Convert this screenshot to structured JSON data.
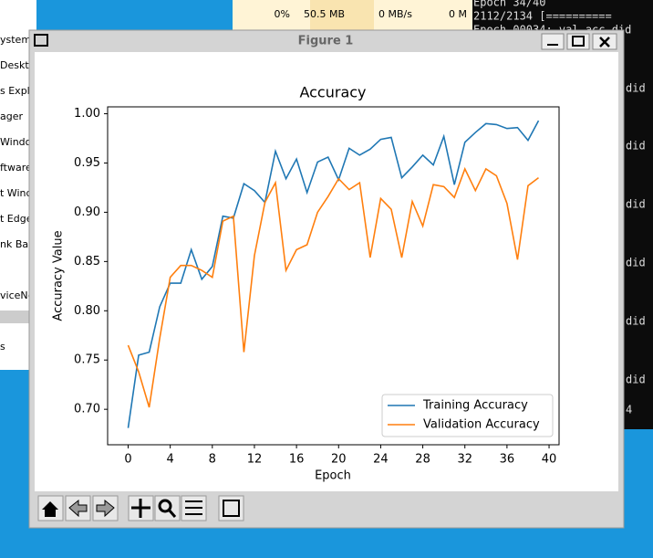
{
  "window": {
    "title": "Figure 1"
  },
  "background": {
    "task_manager": [
      "0%",
      "50.5 MB",
      "0 MB/s",
      "0 M"
    ],
    "sidebar": [
      "ystem",
      "Deskto",
      "s Explo",
      "ager",
      "Windo",
      "ftware:",
      "t Wind",
      "t Edge",
      "nk Bac",
      "viceNo",
      "s"
    ],
    "terminal": [
      "Epoch 34/40",
      "2112/2134 [==========",
      "Epoch 00034: val_acc did"
    ],
    "terminal_fragments": [
      "did",
      "did",
      "did",
      "did",
      "did",
      "did",
      "4"
    ]
  },
  "chart_data": {
    "type": "line",
    "title": "Accuracy",
    "x_label": "Epoch",
    "y_label": "Accuracy Value",
    "x": [
      0,
      1,
      2,
      3,
      4,
      5,
      6,
      7,
      8,
      9,
      10,
      11,
      12,
      13,
      14,
      15,
      16,
      17,
      18,
      19,
      20,
      21,
      22,
      23,
      24,
      25,
      26,
      27,
      28,
      29,
      30,
      31,
      32,
      33,
      34,
      35,
      36,
      37,
      38,
      39
    ],
    "series": [
      {
        "name": "Training Accuracy",
        "color": "#1f77b4",
        "values": [
          0.681,
          0.755,
          0.758,
          0.804,
          0.828,
          0.828,
          0.862,
          0.832,
          0.845,
          0.896,
          0.894,
          0.929,
          0.922,
          0.91,
          0.962,
          0.934,
          0.954,
          0.92,
          0.951,
          0.956,
          0.933,
          0.965,
          0.958,
          0.964,
          0.974,
          0.976,
          0.935,
          0.946,
          0.958,
          0.948,
          0.977,
          0.928,
          0.971,
          0.981,
          0.99,
          0.989,
          0.985,
          0.986,
          0.973,
          0.993
        ]
      },
      {
        "name": "Validation Accuracy",
        "color": "#ff7f0e",
        "values": [
          0.765,
          0.738,
          0.702,
          0.772,
          0.834,
          0.846,
          0.846,
          0.841,
          0.834,
          0.891,
          0.896,
          0.758,
          0.856,
          0.91,
          0.93,
          0.841,
          0.862,
          0.867,
          0.9,
          0.916,
          0.934,
          0.923,
          0.93,
          0.854,
          0.914,
          0.903,
          0.854,
          0.911,
          0.886,
          0.928,
          0.926,
          0.915,
          0.944,
          0.922,
          0.944,
          0.937,
          0.909,
          0.852,
          0.927,
          0.935
        ]
      }
    ],
    "xlim": [
      -1.95,
      40.95
    ],
    "xticks": [
      0,
      4,
      8,
      12,
      16,
      20,
      24,
      28,
      32,
      36,
      40
    ],
    "ylim": [
      0.664,
      1.007
    ],
    "yticks": [
      {
        "value": 0.7,
        "label": "0.70"
      },
      0.75,
      {
        "value": 0.8,
        "label": "0.80"
      },
      0.85,
      {
        "value": 0.9,
        "label": "0.90"
      },
      0.95,
      {
        "value": 1.0,
        "label": "1.00"
      }
    ],
    "legend": "lower right",
    "grid": false
  }
}
